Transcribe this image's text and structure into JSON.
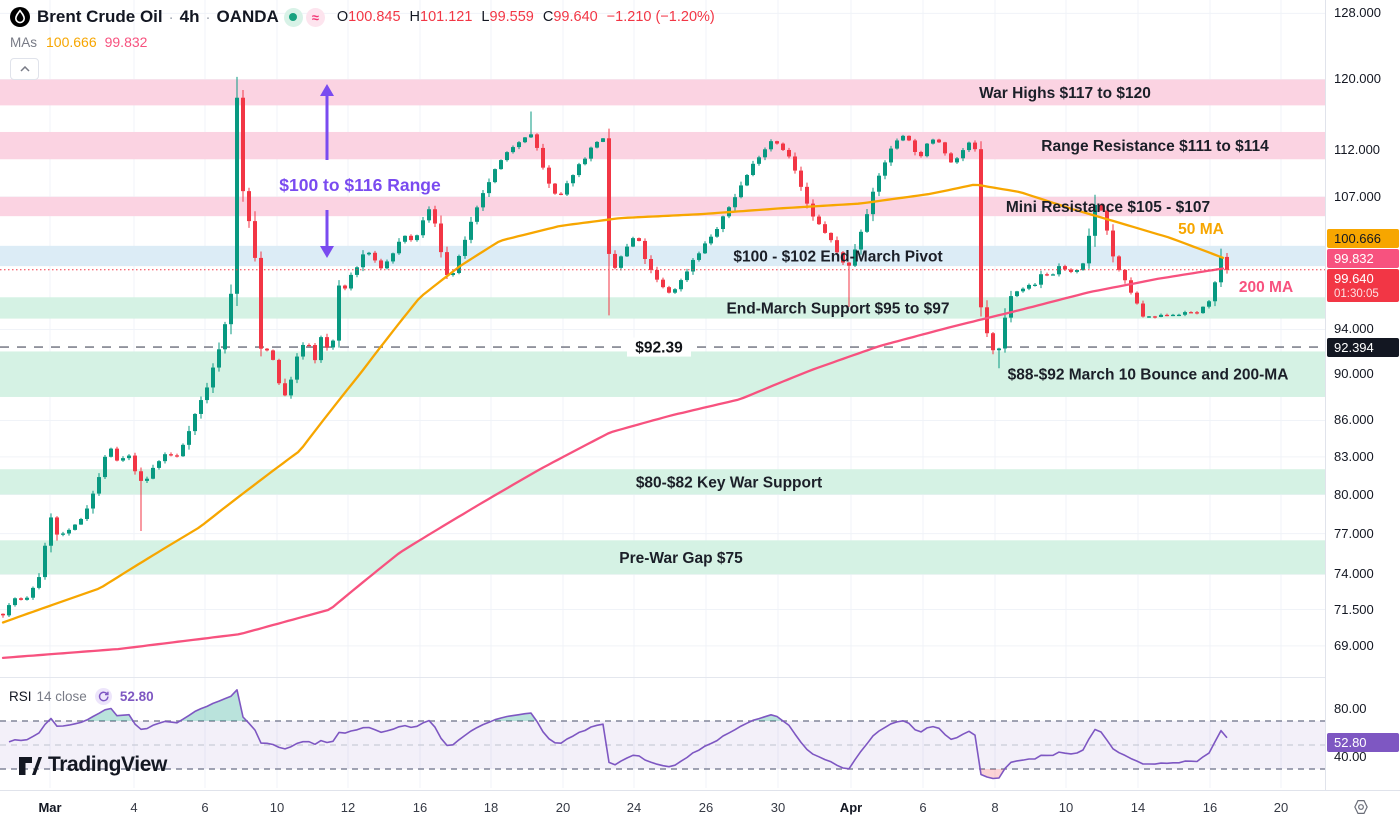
{
  "header": {
    "logo_icon": "oil-drop-icon",
    "symbol": "Brent Crude Oil",
    "interval": "4h",
    "exchange": "OANDA",
    "market_status_icon": "market-open-dot",
    "data_mode_icon": "approx-delayed",
    "data_mode_glyph": "≈",
    "ohlc": [
      {
        "k": "O",
        "v": "100.845"
      },
      {
        "k": "H",
        "v": "101.121"
      },
      {
        "k": "L",
        "v": "99.559"
      },
      {
        "k": "C",
        "v": "99.640"
      }
    ],
    "change": "−1.210 (−1.20%)",
    "mas_label": "MAs",
    "ma50_value": "100.666",
    "ma200_value": "99.832"
  },
  "price_axis_badges": {
    "ma50": "100.666",
    "ma200": "99.832",
    "last_price": "99.640",
    "countdown": "01:30:05",
    "level": "92.394",
    "rsi": "52.80"
  },
  "rsi_legend": {
    "title": "RSI",
    "params": "14 close",
    "value": "52.80"
  },
  "watermark": {
    "text": "TradingView"
  },
  "chart_data": {
    "type": "candlestick",
    "title": "Brent Crude Oil · 4h · OANDA",
    "scale": "log",
    "colors": {
      "up": "#089981",
      "down": "#f23645",
      "ma50": "#f7a600",
      "ma200": "#f7527f",
      "rsi": "#7e57c2",
      "accent_purple": "#7a4bf0",
      "band_pink": "#fbd3e2",
      "band_green": "#d5f2e4",
      "band_blue": "#dcecf6",
      "grid": "#f0f3f8",
      "level_gray": "#80838e",
      "badge_black": "#131722"
    },
    "price_ticks": [
      128,
      120,
      112,
      107,
      94,
      90,
      86,
      83,
      80,
      77,
      74,
      71.5,
      69
    ],
    "rsi_ticks": [
      80,
      40
    ],
    "time_ticks": [
      [
        "Mar",
        50,
        1
      ],
      [
        "4",
        134,
        0
      ],
      [
        "6",
        205,
        0
      ],
      [
        "10",
        277,
        0
      ],
      [
        "12",
        348,
        0
      ],
      [
        "16",
        420,
        0
      ],
      [
        "18",
        491,
        0
      ],
      [
        "20",
        563,
        0
      ],
      [
        "24",
        634,
        0
      ],
      [
        "26",
        706,
        0
      ],
      [
        "30",
        778,
        0
      ],
      [
        "Apr",
        851,
        1
      ],
      [
        "6",
        923,
        0
      ],
      [
        "8",
        995,
        0
      ],
      [
        "10",
        1066,
        0
      ],
      [
        "14",
        1138,
        0
      ],
      [
        "16",
        1210,
        0
      ],
      [
        "20",
        1281,
        0
      ]
    ],
    "zones": [
      {
        "label": "War Highs $117 to $120",
        "from": 117,
        "to": 120,
        "tone": "pink"
      },
      {
        "label": "Range Resistance $111 to $114",
        "from": 111,
        "to": 114,
        "tone": "pink"
      },
      {
        "label": "Mini Resistance $105 - $107",
        "from": 105,
        "to": 107,
        "tone": "pink"
      },
      {
        "label": "$100 - $102 End-March Pivot",
        "from": 100,
        "to": 102,
        "tone": "blue"
      },
      {
        "label": "End-March Support $95 to $97",
        "from": 95,
        "to": 97,
        "tone": "green"
      },
      {
        "label": "$88-$92 March 10 Bounce and 200-MA",
        "from": 88,
        "to": 92,
        "tone": "green"
      },
      {
        "label": "$80-$82 Key War Support",
        "from": 80,
        "to": 82,
        "tone": "green"
      },
      {
        "label": "Pre-War Gap $75",
        "from": 74,
        "to": 76.5,
        "tone": "green"
      }
    ],
    "level_line": {
      "price": 92.394,
      "label": "$92.39"
    },
    "current_price": 99.64,
    "range_arrow": {
      "text": "$100 to $116 Range",
      "from_price": 100,
      "to_price": 116
    },
    "ma_labels": [
      {
        "text": "50 MA"
      },
      {
        "text": "200 MA"
      }
    ],
    "rsi_settings": {
      "period": 14,
      "source": "close",
      "upper": 70,
      "lower": 30,
      "middle": 50,
      "last_value": 52.8
    },
    "price_path": [
      [
        3,
        71.2
      ],
      [
        15,
        72.3
      ],
      [
        25,
        72.0
      ],
      [
        40,
        74.0
      ],
      [
        46,
        76.3
      ],
      [
        51,
        78.4
      ],
      [
        56,
        76.8
      ],
      [
        70,
        77.2
      ],
      [
        80,
        78.0
      ],
      [
        90,
        79.5
      ],
      [
        100,
        81.5
      ],
      [
        108,
        84.0
      ],
      [
        118,
        82.5
      ],
      [
        128,
        83.2
      ],
      [
        136,
        81.8
      ],
      [
        143,
        80.6
      ],
      [
        152,
        82.0
      ],
      [
        165,
        83.2
      ],
      [
        178,
        83.0
      ],
      [
        190,
        85.5
      ],
      [
        200,
        87.5
      ],
      [
        210,
        89.5
      ],
      [
        218,
        92.0
      ],
      [
        226,
        94.8
      ],
      [
        231,
        97.5
      ],
      [
        234,
        104.0
      ],
      [
        236,
        118.5
      ],
      [
        239,
        116.0
      ],
      [
        242,
        108.0
      ],
      [
        247,
        105.5
      ],
      [
        252,
        103.0
      ],
      [
        257,
        99.0
      ],
      [
        262,
        90.5
      ],
      [
        268,
        92.5
      ],
      [
        274,
        91.0
      ],
      [
        280,
        89.0
      ],
      [
        286,
        87.8
      ],
      [
        292,
        90.0
      ],
      [
        300,
        92.3
      ],
      [
        308,
        92.8
      ],
      [
        315,
        91.2
      ],
      [
        322,
        93.5
      ],
      [
        328,
        92.0
      ],
      [
        334,
        93.2
      ],
      [
        338,
        98.5
      ],
      [
        344,
        97.5
      ],
      [
        350,
        99.0
      ],
      [
        358,
        100.0
      ],
      [
        366,
        101.8
      ],
      [
        374,
        100.5
      ],
      [
        382,
        99.8
      ],
      [
        390,
        100.8
      ],
      [
        398,
        102.2
      ],
      [
        406,
        103.2
      ],
      [
        414,
        102.0
      ],
      [
        422,
        104.5
      ],
      [
        430,
        105.8
      ],
      [
        437,
        103.5
      ],
      [
        444,
        100.0
      ],
      [
        450,
        98.6
      ],
      [
        458,
        100.5
      ],
      [
        466,
        103.0
      ],
      [
        474,
        105.0
      ],
      [
        482,
        107.0
      ],
      [
        492,
        109.3
      ],
      [
        502,
        111.0
      ],
      [
        512,
        112.3
      ],
      [
        522,
        113.3
      ],
      [
        530,
        113.9
      ],
      [
        538,
        112.0
      ],
      [
        546,
        109.0
      ],
      [
        553,
        107.3
      ],
      [
        560,
        107.0
      ],
      [
        568,
        108.5
      ],
      [
        576,
        110.0
      ],
      [
        585,
        111.2
      ],
      [
        593,
        112.5
      ],
      [
        601,
        113.5
      ],
      [
        605,
        112.9
      ],
      [
        609,
        100.8
      ],
      [
        614,
        99.6
      ],
      [
        620,
        100.8
      ],
      [
        628,
        102.0
      ],
      [
        636,
        103.2
      ],
      [
        644,
        101.0
      ],
      [
        652,
        99.3
      ],
      [
        660,
        98.2
      ],
      [
        668,
        97.4
      ],
      [
        676,
        97.9
      ],
      [
        684,
        99.0
      ],
      [
        692,
        100.5
      ],
      [
        700,
        101.5
      ],
      [
        708,
        102.6
      ],
      [
        716,
        103.5
      ],
      [
        724,
        105.0
      ],
      [
        732,
        106.5
      ],
      [
        740,
        108.0
      ],
      [
        748,
        109.5
      ],
      [
        756,
        111.0
      ],
      [
        764,
        112.0
      ],
      [
        772,
        113.2
      ],
      [
        780,
        112.5
      ],
      [
        788,
        111.5
      ],
      [
        796,
        109.5
      ],
      [
        804,
        107.0
      ],
      [
        812,
        105.0
      ],
      [
        820,
        104.0
      ],
      [
        828,
        103.0
      ],
      [
        836,
        101.5
      ],
      [
        844,
        100.3
      ],
      [
        849,
        100.0
      ],
      [
        856,
        102.0
      ],
      [
        864,
        104.5
      ],
      [
        872,
        107.0
      ],
      [
        880,
        109.5
      ],
      [
        888,
        111.5
      ],
      [
        896,
        113.0
      ],
      [
        904,
        113.8
      ],
      [
        912,
        112.5
      ],
      [
        920,
        111.0
      ],
      [
        928,
        112.8
      ],
      [
        936,
        113.5
      ],
      [
        944,
        112.0
      ],
      [
        952,
        110.5
      ],
      [
        960,
        111.5
      ],
      [
        968,
        112.8
      ],
      [
        975,
        112.0
      ],
      [
        979,
        96.8
      ],
      [
        984,
        94.5
      ],
      [
        990,
        93.0
      ],
      [
        996,
        91.0
      ],
      [
        1002,
        93.5
      ],
      [
        1008,
        96.5
      ],
      [
        1014,
        98.2
      ],
      [
        1020,
        97.2
      ],
      [
        1026,
        98.6
      ],
      [
        1032,
        97.6
      ],
      [
        1038,
        98.8
      ],
      [
        1044,
        99.6
      ],
      [
        1050,
        98.8
      ],
      [
        1056,
        99.6
      ],
      [
        1062,
        100.4
      ],
      [
        1068,
        99.0
      ],
      [
        1074,
        99.8
      ],
      [
        1080,
        99.3
      ],
      [
        1086,
        101.0
      ],
      [
        1090,
        103.5
      ],
      [
        1094,
        106.0
      ],
      [
        1098,
        106.8
      ],
      [
        1102,
        105.3
      ],
      [
        1106,
        104.0
      ],
      [
        1110,
        102.0
      ],
      [
        1116,
        100.0
      ],
      [
        1122,
        99.0
      ],
      [
        1128,
        98.0
      ],
      [
        1134,
        97.0
      ],
      [
        1140,
        95.6
      ],
      [
        1146,
        94.8
      ],
      [
        1152,
        95.4
      ],
      [
        1158,
        94.9
      ],
      [
        1164,
        95.6
      ],
      [
        1170,
        95.1
      ],
      [
        1176,
        95.7
      ],
      [
        1182,
        95.2
      ],
      [
        1188,
        95.8
      ],
      [
        1194,
        95.4
      ],
      [
        1200,
        95.7
      ],
      [
        1206,
        96.3
      ],
      [
        1212,
        97.2
      ],
      [
        1216,
        98.6
      ],
      [
        1221,
        100.9
      ],
      [
        1227,
        99.64
      ]
    ],
    "wick_overrides": [
      {
        "i": 39,
        "high": 120.3
      },
      {
        "i": 88,
        "high": 116.3
      },
      {
        "i": 23,
        "low": 77.2
      },
      {
        "i": 101,
        "low": 95.3
      },
      {
        "i": 141,
        "low": 96.1
      },
      {
        "i": 163,
        "low": 95.2
      },
      {
        "i": 166,
        "low": 90.5
      }
    ],
    "ma50_path": [
      [
        3,
        70.6
      ],
      [
        100,
        73.0
      ],
      [
        200,
        77.5
      ],
      [
        300,
        83.5
      ],
      [
        360,
        90.0
      ],
      [
        420,
        97.0
      ],
      [
        460,
        100.0
      ],
      [
        500,
        102.5
      ],
      [
        560,
        104.0
      ],
      [
        620,
        104.8
      ],
      [
        700,
        105.2
      ],
      [
        780,
        105.8
      ],
      [
        860,
        106.3
      ],
      [
        930,
        107.3
      ],
      [
        975,
        108.3
      ],
      [
        1020,
        107.5
      ],
      [
        1070,
        105.8
      ],
      [
        1120,
        104.3
      ],
      [
        1170,
        102.8
      ],
      [
        1210,
        101.3
      ],
      [
        1227,
        100.67
      ]
    ],
    "ma200_path": [
      [
        3,
        68.2
      ],
      [
        120,
        68.8
      ],
      [
        240,
        69.8
      ],
      [
        330,
        71.5
      ],
      [
        400,
        75.6
      ],
      [
        470,
        78.8
      ],
      [
        540,
        82.0
      ],
      [
        610,
        85.0
      ],
      [
        670,
        86.4
      ],
      [
        740,
        87.8
      ],
      [
        810,
        90.3
      ],
      [
        880,
        92.5
      ],
      [
        950,
        94.2
      ],
      [
        1020,
        95.8
      ],
      [
        1090,
        97.5
      ],
      [
        1160,
        98.8
      ],
      [
        1227,
        99.83
      ]
    ]
  }
}
